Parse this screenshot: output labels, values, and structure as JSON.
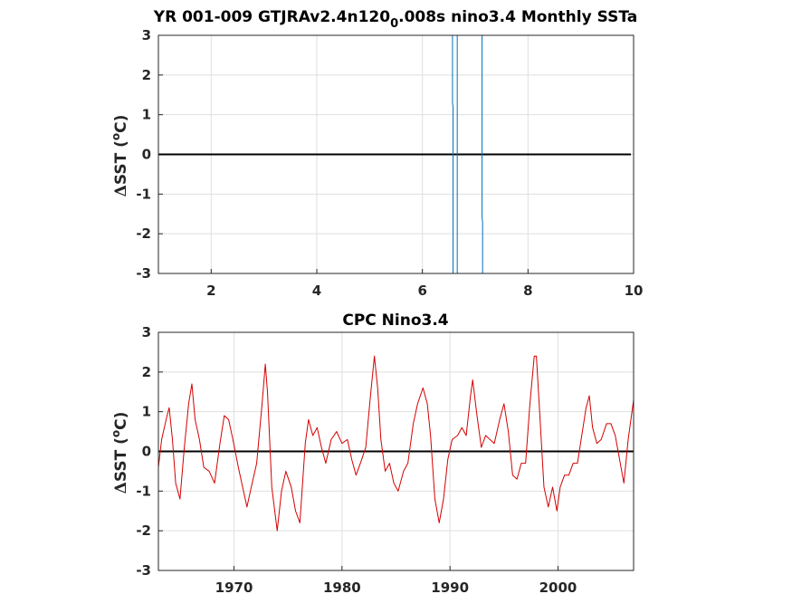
{
  "chart_data": [
    {
      "type": "line",
      "title_main": "YR 001-009 GTJRAv2.4n120",
      "title_sub": "0",
      "title_rest": ".008s nino3.4 Monthly SSTa",
      "ylabel_delta": "Δ",
      "ylabel_text": "SST (",
      "ylabel_sup": "o",
      "ylabel_end": "C)",
      "xlim": [
        1,
        10
      ],
      "ylim": [
        -3,
        3
      ],
      "xticks": [
        "2",
        "4",
        "6",
        "8",
        "10"
      ],
      "yticks": [
        "3",
        "2",
        "1",
        "0",
        "-1",
        "-2",
        "-3"
      ],
      "grid": true,
      "colors": {
        "series": "#0072bd",
        "zero": "#000000",
        "grid": "#dfdfdf"
      },
      "zero_line": {
        "x": [
          1,
          9.95
        ],
        "y": 0
      },
      "series": [
        {
          "values": [
            [
              6.57,
              3.2
            ],
            [
              6.57,
              1.3
            ],
            [
              6.58,
              1.2
            ],
            [
              6.58,
              -3.2
            ]
          ]
        },
        {
          "values": [
            [
              6.66,
              3.2
            ],
            [
              6.66,
              -3.2
            ]
          ]
        },
        {
          "values": [
            [
              7.13,
              3.2
            ],
            [
              7.13,
              -1.6
            ],
            [
              7.14,
              -1.7
            ],
            [
              7.14,
              -3.2
            ]
          ]
        }
      ]
    },
    {
      "type": "line",
      "title": "CPC Nino3.4",
      "ylabel_delta": "Δ",
      "ylabel_text": "SST (",
      "ylabel_sup": "o",
      "ylabel_end": "C)",
      "xlim": [
        1963,
        2007
      ],
      "ylim": [
        -3,
        3
      ],
      "xticks": [
        "1970",
        "1980",
        "1990",
        "2000"
      ],
      "yticks": [
        "3",
        "2",
        "1",
        "0",
        "-1",
        "-2",
        "-3"
      ],
      "grid": true,
      "colors": {
        "series": "#d40000",
        "zero": "#000000",
        "grid": "#dfdfdf"
      },
      "zero_line": {
        "x": [
          1963,
          2007
        ],
        "y": 0
      },
      "series": [
        {
          "values": [
            [
              1963.0,
              -0.4
            ],
            [
              1963.3,
              0.3
            ],
            [
              1963.8,
              0.9
            ],
            [
              1964.0,
              1.1
            ],
            [
              1964.3,
              0.3
            ],
            [
              1964.6,
              -0.8
            ],
            [
              1965.0,
              -1.2
            ],
            [
              1965.4,
              0.1
            ],
            [
              1965.8,
              1.2
            ],
            [
              1966.1,
              1.7
            ],
            [
              1966.4,
              0.8
            ],
            [
              1966.8,
              0.3
            ],
            [
              1967.2,
              -0.4
            ],
            [
              1967.7,
              -0.5
            ],
            [
              1968.2,
              -0.8
            ],
            [
              1968.7,
              0.2
            ],
            [
              1969.1,
              0.9
            ],
            [
              1969.5,
              0.8
            ],
            [
              1969.9,
              0.3
            ],
            [
              1970.4,
              -0.4
            ],
            [
              1970.8,
              -0.9
            ],
            [
              1971.2,
              -1.4
            ],
            [
              1971.6,
              -0.9
            ],
            [
              1972.1,
              -0.3
            ],
            [
              1972.6,
              1.2
            ],
            [
              1972.9,
              2.2
            ],
            [
              1973.1,
              1.5
            ],
            [
              1973.5,
              -0.9
            ],
            [
              1974.0,
              -2.0
            ],
            [
              1974.4,
              -1.0
            ],
            [
              1974.8,
              -0.5
            ],
            [
              1975.3,
              -0.9
            ],
            [
              1975.7,
              -1.5
            ],
            [
              1976.1,
              -1.8
            ],
            [
              1976.6,
              0.2
            ],
            [
              1976.9,
              0.8
            ],
            [
              1977.3,
              0.4
            ],
            [
              1977.7,
              0.6
            ],
            [
              1978.1,
              0.1
            ],
            [
              1978.5,
              -0.3
            ],
            [
              1979.0,
              0.3
            ],
            [
              1979.5,
              0.5
            ],
            [
              1980.0,
              0.2
            ],
            [
              1980.5,
              0.3
            ],
            [
              1980.9,
              -0.2
            ],
            [
              1981.3,
              -0.6
            ],
            [
              1981.7,
              -0.3
            ],
            [
              1982.2,
              0.1
            ],
            [
              1982.6,
              1.3
            ],
            [
              1983.0,
              2.4
            ],
            [
              1983.3,
              1.6
            ],
            [
              1983.6,
              0.3
            ],
            [
              1984.0,
              -0.5
            ],
            [
              1984.4,
              -0.3
            ],
            [
              1984.8,
              -0.8
            ],
            [
              1985.2,
              -1.0
            ],
            [
              1985.7,
              -0.5
            ],
            [
              1986.1,
              -0.3
            ],
            [
              1986.6,
              0.7
            ],
            [
              1987.0,
              1.2
            ],
            [
              1987.5,
              1.6
            ],
            [
              1987.9,
              1.2
            ],
            [
              1988.2,
              0.4
            ],
            [
              1988.6,
              -1.2
            ],
            [
              1989.0,
              -1.8
            ],
            [
              1989.4,
              -1.2
            ],
            [
              1989.8,
              -0.2
            ],
            [
              1990.2,
              0.3
            ],
            [
              1990.7,
              0.4
            ],
            [
              1991.1,
              0.6
            ],
            [
              1991.5,
              0.4
            ],
            [
              1991.9,
              1.4
            ],
            [
              1992.1,
              1.8
            ],
            [
              1992.5,
              0.9
            ],
            [
              1992.9,
              0.1
            ],
            [
              1993.3,
              0.4
            ],
            [
              1993.7,
              0.3
            ],
            [
              1994.1,
              0.2
            ],
            [
              1994.6,
              0.8
            ],
            [
              1995.0,
              1.2
            ],
            [
              1995.4,
              0.5
            ],
            [
              1995.8,
              -0.6
            ],
            [
              1996.2,
              -0.7
            ],
            [
              1996.6,
              -0.3
            ],
            [
              1997.0,
              -0.3
            ],
            [
              1997.4,
              1.2
            ],
            [
              1997.8,
              2.4
            ],
            [
              1998.0,
              2.4
            ],
            [
              1998.3,
              1.0
            ],
            [
              1998.7,
              -0.9
            ],
            [
              1999.1,
              -1.4
            ],
            [
              1999.5,
              -0.9
            ],
            [
              1999.9,
              -1.5
            ],
            [
              2000.2,
              -0.9
            ],
            [
              2000.6,
              -0.6
            ],
            [
              2001.0,
              -0.6
            ],
            [
              2001.4,
              -0.3
            ],
            [
              2001.8,
              -0.3
            ],
            [
              2002.2,
              0.4
            ],
            [
              2002.6,
              1.1
            ],
            [
              2002.9,
              1.4
            ],
            [
              2003.2,
              0.6
            ],
            [
              2003.6,
              0.2
            ],
            [
              2004.0,
              0.3
            ],
            [
              2004.5,
              0.7
            ],
            [
              2004.9,
              0.7
            ],
            [
              2005.3,
              0.4
            ],
            [
              2005.7,
              -0.2
            ],
            [
              2006.1,
              -0.8
            ],
            [
              2006.5,
              0.3
            ],
            [
              2006.8,
              0.9
            ],
            [
              2007.0,
              1.3
            ]
          ]
        }
      ]
    }
  ]
}
